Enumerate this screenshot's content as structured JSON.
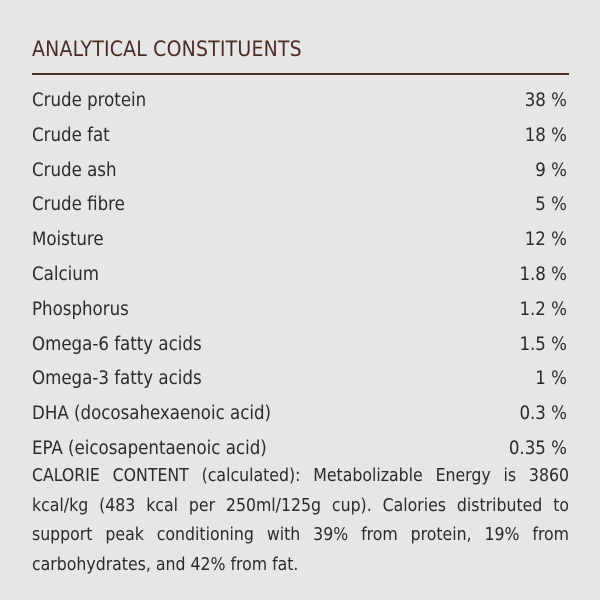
{
  "title": "ANALYTICAL CONSTITUENTS",
  "constituents": [
    {
      "label": "Crude protein",
      "value": "38 %"
    },
    {
      "label": "Crude fat",
      "value": "18 %"
    },
    {
      "label": "Crude ash",
      "value": "9 %"
    },
    {
      "label": "Crude fibre",
      "value": "5 %"
    },
    {
      "label": "Moisture",
      "value": "12 %"
    },
    {
      "label": "Calcium",
      "value": "1.8 %"
    },
    {
      "label": "Phosphorus",
      "value": "1.2 %"
    },
    {
      "label": "Omega-6 fatty acids",
      "value": "1.5 %"
    },
    {
      "label": "Omega-3 fatty acids",
      "value": "1 %"
    },
    {
      "label": "DHA (docosahexaenoic acid)",
      "value": "0.3 %"
    },
    {
      "label": "EPA (eicosapentaenoic acid)",
      "value": "0.35 %"
    }
  ],
  "calorie_content": "CALORIE CONTENT (calculated): Metabolizable Energy is 3860 kcal/kg (483 kcal per 250ml/125g cup). Calories distributed to support peak conditioning with 39% from protein, 19% from carbohydrates, and 42% from fat.",
  "colors": {
    "background": "#e7e6e6",
    "heading": "#4a2c22",
    "text": "#2a2a2a"
  }
}
